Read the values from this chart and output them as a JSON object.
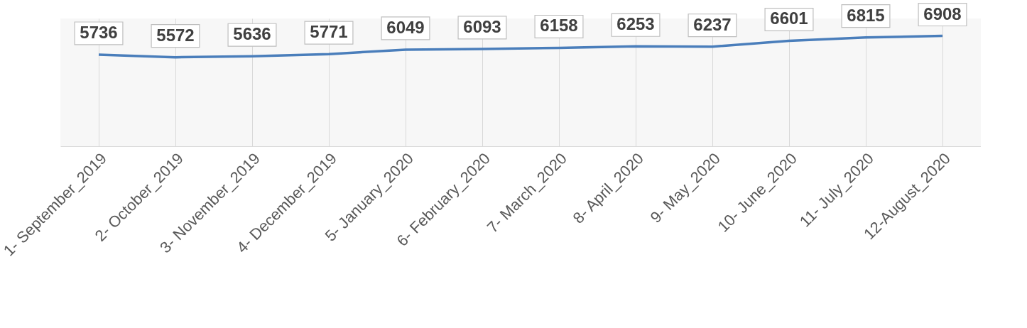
{
  "chart_data": {
    "type": "line",
    "categories": [
      "1- September_2019",
      "2- October_2019",
      "3- November_2019",
      "4- December_2019",
      "5- January_2020",
      "6- February_2020",
      "7- March_2020",
      "8- April_2020",
      "9- May_2020",
      "10- June_2020",
      "11- July_2020",
      "12-August_2020"
    ],
    "series": [
      {
        "color": "#4a7ebb",
        "values": [
          5736,
          5572,
          5636,
          5771,
          6049,
          6093,
          6158,
          6253,
          6237,
          6601,
          6815,
          6908
        ]
      }
    ],
    "ylim": [
      0,
      8000
    ],
    "tick_labels": "x",
    "grid": "x",
    "data_labels": true,
    "marker": "none",
    "line_style": "solid",
    "legend": false
  }
}
